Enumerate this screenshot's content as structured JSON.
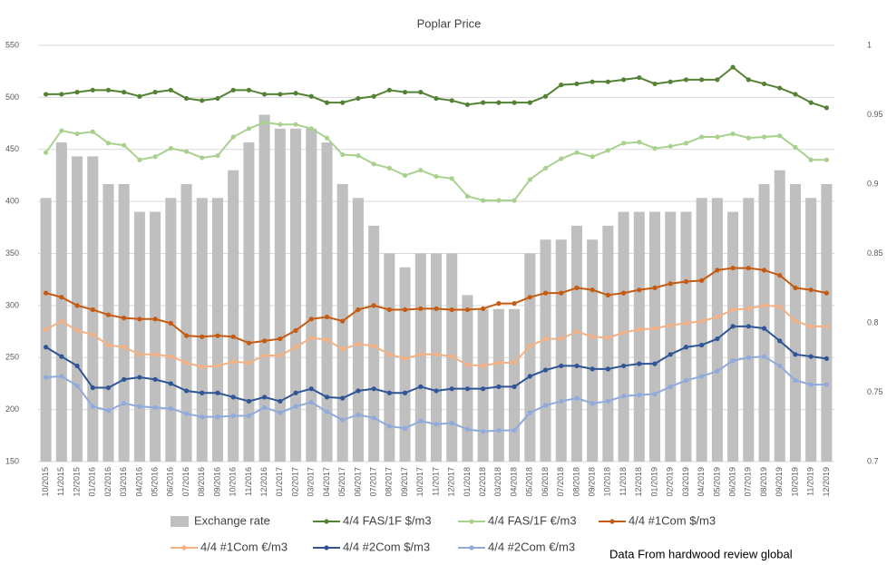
{
  "chart_data": {
    "type": "combo",
    "title": "Poplar Price",
    "categories": [
      "10/2015",
      "11/2015",
      "12/2015",
      "01/2016",
      "02/2016",
      "03/2016",
      "04/2016",
      "05/2016",
      "06/2016",
      "07/2016",
      "08/2016",
      "09/2016",
      "10/2016",
      "11/2016",
      "12/2016",
      "01/2017",
      "02/2017",
      "03/2017",
      "04/2017",
      "05/2017",
      "06/2017",
      "07/2017",
      "08/2017",
      "09/2017",
      "10/2017",
      "11/2017",
      "12/2017",
      "01/2018",
      "02/2018",
      "03/2018",
      "04/2018",
      "05/2018",
      "06/2018",
      "07/2018",
      "08/2018",
      "09/2018",
      "10/2018",
      "11/2018",
      "12/2018",
      "01/2019",
      "02/2019",
      "03/2019",
      "04/2019",
      "05/2019",
      "06/2019",
      "07/2019",
      "08/2019",
      "09/2019",
      "10/2019",
      "11/2019",
      "12/2019"
    ],
    "series": [
      {
        "name": "Exchange rate",
        "type": "bar",
        "axis": "y2",
        "color": "#bfbfbf",
        "values": [
          0.89,
          0.93,
          0.92,
          0.92,
          0.9,
          0.9,
          0.88,
          0.88,
          0.89,
          0.9,
          0.89,
          0.89,
          0.91,
          0.93,
          0.95,
          0.94,
          0.94,
          0.94,
          0.93,
          0.9,
          0.89,
          0.87,
          0.85,
          0.84,
          0.85,
          0.85,
          0.85,
          0.82,
          0.81,
          0.81,
          0.81,
          0.85,
          0.86,
          0.86,
          0.87,
          0.86,
          0.87,
          0.88,
          0.88,
          0.88,
          0.88,
          0.88,
          0.89,
          0.89,
          0.88,
          0.89,
          0.9,
          0.91,
          0.9,
          0.89,
          0.9
        ]
      },
      {
        "name": "4/4 FAS/1F $/m3",
        "type": "line",
        "color": "#548235",
        "values": [
          503,
          503,
          505,
          507,
          507,
          505,
          501,
          505,
          507,
          499,
          497,
          499,
          507,
          507,
          503,
          503,
          504,
          501,
          495,
          495,
          499,
          501,
          507,
          505,
          505,
          499,
          497,
          493,
          495,
          495,
          495,
          495,
          501,
          512,
          513,
          515,
          515,
          517,
          519,
          513,
          515,
          517,
          517,
          517,
          529,
          517,
          513,
          509,
          503,
          495,
          490
        ]
      },
      {
        "name": "4/4 FAS/1F €/m3",
        "type": "line",
        "color": "#a9d18e",
        "values": [
          447,
          468,
          465,
          467,
          456,
          454,
          440,
          443,
          451,
          448,
          442,
          444,
          462,
          470,
          476,
          474,
          474,
          470,
          461,
          445,
          444,
          436,
          432,
          425,
          430,
          424,
          422,
          405,
          401,
          401,
          401,
          421,
          432,
          441,
          447,
          443,
          449,
          456,
          457,
          451,
          453,
          456,
          462,
          462,
          465,
          461,
          462,
          463,
          452,
          440,
          440
        ]
      },
      {
        "name": "4/4 #1Com $/m3",
        "type": "line",
        "color": "#c55a11",
        "values": [
          312,
          308,
          300,
          296,
          291,
          288,
          287,
          287,
          283,
          271,
          270,
          271,
          270,
          264,
          266,
          268,
          276,
          287,
          289,
          285,
          296,
          300,
          296,
          296,
          297,
          297,
          296,
          296,
          297,
          302,
          302,
          308,
          312,
          312,
          317,
          315,
          310,
          312,
          315,
          317,
          321,
          323,
          324,
          334,
          336,
          336,
          334,
          329,
          317,
          315,
          312
        ]
      },
      {
        "name": "4/4 #1Com €/m3",
        "type": "line",
        "color": "#f4b183",
        "values": [
          277,
          285,
          276,
          272,
          262,
          260,
          253,
          253,
          251,
          245,
          241,
          242,
          246,
          245,
          252,
          252,
          260,
          269,
          267,
          258,
          263,
          261,
          253,
          249,
          253,
          253,
          251,
          243,
          242,
          245,
          245,
          261,
          268,
          268,
          275,
          270,
          269,
          274,
          277,
          278,
          281,
          283,
          285,
          289,
          296,
          297,
          300,
          299,
          285,
          280,
          280
        ]
      },
      {
        "name": "4/4 #2Com $/m3",
        "type": "line",
        "color": "#2f5597",
        "values": [
          260,
          251,
          242,
          221,
          221,
          229,
          231,
          229,
          225,
          218,
          216,
          216,
          212,
          208,
          212,
          208,
          216,
          220,
          212,
          211,
          218,
          220,
          216,
          216,
          222,
          218,
          220,
          220,
          220,
          222,
          222,
          232,
          238,
          242,
          242,
          239,
          239,
          242,
          244,
          244,
          253,
          260,
          262,
          268,
          280,
          280,
          278,
          266,
          253,
          251,
          249
        ]
      },
      {
        "name": "4/4 #2Com €/m3",
        "type": "line",
        "color": "#8faadc",
        "values": [
          231,
          232,
          223,
          203,
          199,
          206,
          203,
          202,
          201,
          196,
          193,
          193,
          194,
          194,
          202,
          197,
          203,
          207,
          198,
          190,
          195,
          192,
          184,
          182,
          189,
          186,
          187,
          181,
          179,
          180,
          180,
          197,
          204,
          208,
          211,
          206,
          208,
          213,
          214,
          215,
          222,
          228,
          232,
          237,
          247,
          250,
          251,
          242,
          228,
          224,
          224
        ]
      }
    ],
    "ylim": [
      150,
      550
    ],
    "yticks": [
      150,
      200,
      250,
      300,
      350,
      400,
      450,
      500,
      550
    ],
    "y2lim": [
      0.7,
      1
    ],
    "y2ticks": [
      0.7,
      0.75,
      0.8,
      0.85,
      0.9,
      0.95,
      1
    ],
    "grid": true,
    "legend": "bottom",
    "annotation": "Data From hardwood review global"
  }
}
